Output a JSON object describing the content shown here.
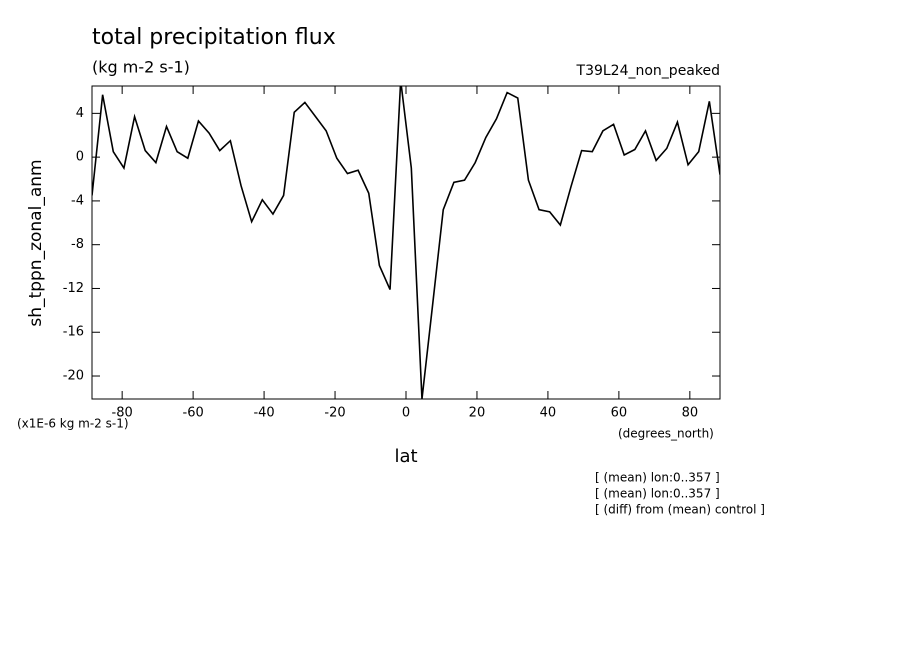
{
  "chart_data": {
    "type": "line",
    "title": "total precipitation flux",
    "subtitle": "(kg m-2 s-1)",
    "dataset_label": "T39L24_non_peaked",
    "y_label": "sh_tppn_zonal_anm",
    "y_units": "(x1E-6 kg m-2 s-1)",
    "x_label": "lat",
    "x_units": "(degrees_north)",
    "annotations": [
      "[ (mean) lon:0..357 ]",
      "[ (mean) lon:0..357 ]",
      "[ (diff) from (mean) control ]"
    ],
    "x": [
      -88.5,
      -85.5,
      -82.5,
      -79.5,
      -76.5,
      -73.5,
      -70.5,
      -67.5,
      -64.5,
      -61.5,
      -58.5,
      -55.5,
      -52.5,
      -49.5,
      -46.5,
      -43.5,
      -40.5,
      -37.5,
      -34.5,
      -31.5,
      -28.5,
      -25.5,
      -22.5,
      -19.5,
      -16.5,
      -13.5,
      -10.5,
      -7.5,
      -4.5,
      -1.5,
      1.5,
      4.5,
      7.5,
      10.5,
      13.5,
      16.5,
      19.5,
      22.5,
      25.5,
      28.5,
      31.5,
      34.5,
      37.5,
      40.5,
      43.5,
      46.5,
      49.5,
      52.5,
      55.5,
      58.5,
      61.5,
      64.5,
      67.5,
      70.5,
      73.5,
      76.5,
      79.5,
      82.5,
      85.5,
      88.5
    ],
    "series": [
      {
        "color": "#000000",
        "values": [
          -3.5,
          5.7,
          0.5,
          -1.0,
          3.7,
          0.6,
          -0.5,
          2.8,
          0.5,
          -0.1,
          3.3,
          2.2,
          0.6,
          1.5,
          -2.6,
          -5.9,
          -3.9,
          -5.2,
          -3.5,
          4.1,
          5.0,
          3.7,
          2.4,
          -0.1,
          -1.5,
          -1.2,
          -3.3,
          -9.9,
          -12.1,
          7.0,
          -1.0,
          -22.1,
          -13.5,
          -4.8,
          -2.3,
          -2.1,
          -0.5,
          1.8,
          3.5,
          5.9,
          5.4,
          -2.1,
          -4.8,
          -5.0,
          -6.2,
          -2.7,
          0.6,
          0.5,
          2.4,
          3.0,
          0.2,
          0.7,
          2.4,
          -0.3,
          0.8,
          3.2,
          -0.7,
          0.5,
          5.1,
          -1.6
        ]
      }
    ],
    "xlim": [
      -88.5,
      88.5
    ],
    "ylim": [
      -22.1,
      6.5
    ],
    "xticks": [
      -80,
      -60,
      -40,
      -20,
      0,
      20,
      40,
      60,
      80
    ],
    "yticks": [
      4,
      0,
      -4,
      -8,
      -12,
      -16,
      -20
    ],
    "grid": false
  }
}
